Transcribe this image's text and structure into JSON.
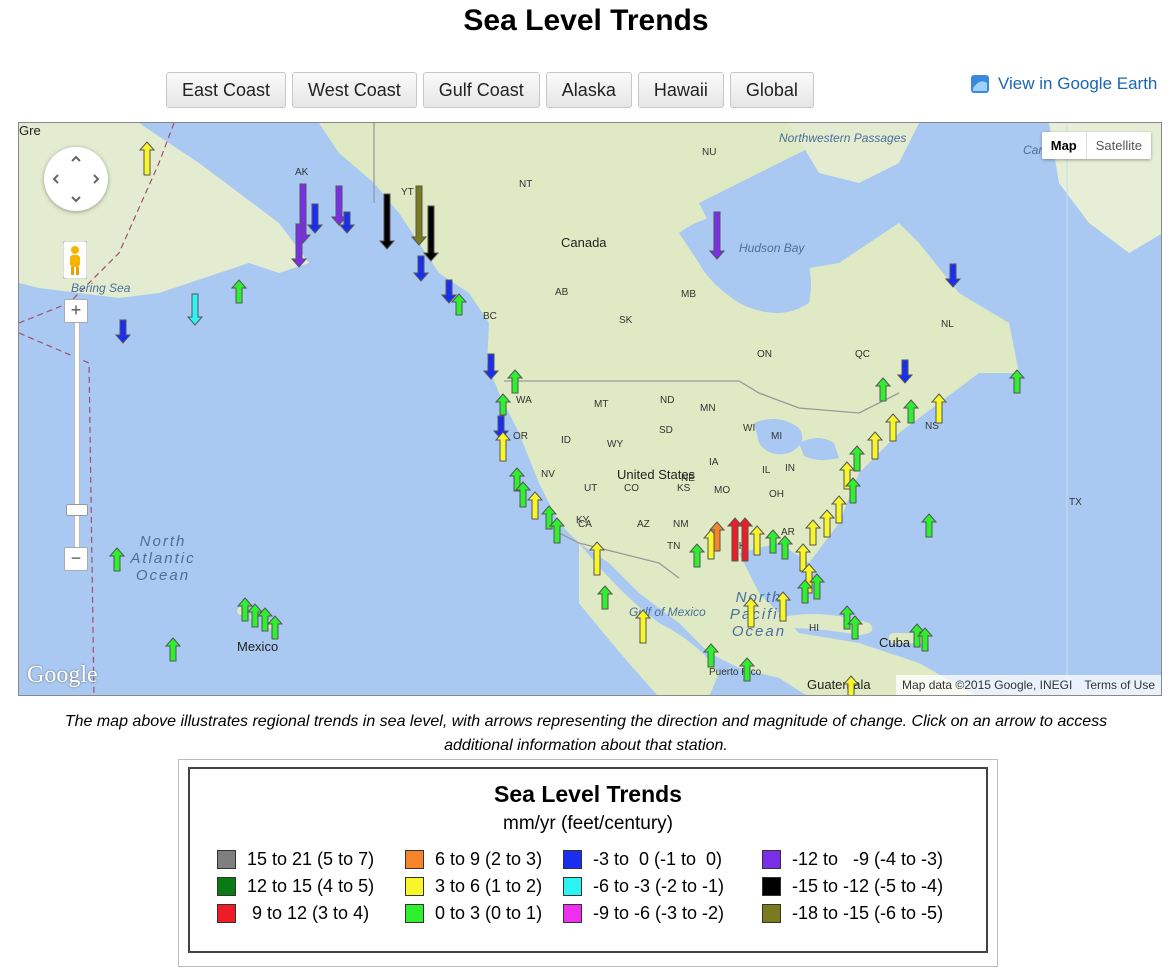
{
  "title": "Sea Level Trends",
  "regions": [
    "East Coast",
    "West Coast",
    "Gulf Coast",
    "Alaska",
    "Hawaii",
    "Global"
  ],
  "google_earth_link": "View in Google Earth",
  "map": {
    "type_buttons": [
      "Map",
      "Satellite"
    ],
    "active_type": "Map",
    "zoom_in": "+",
    "zoom_out": "−",
    "attribution": "Map data ©2015 Google, INEGI",
    "terms": "Terms of Use",
    "logo": "Google",
    "labels": [
      {
        "text": "Northwestern Passages",
        "kind": "water"
      },
      {
        "text": "NU",
        "kind": "region"
      },
      {
        "text": "NT",
        "kind": "region"
      },
      {
        "text": "Canada",
        "kind": "country"
      },
      {
        "text": "Hudson Bay",
        "kind": "water"
      },
      {
        "text": "AK",
        "kind": "region"
      },
      {
        "text": "YT",
        "kind": "region"
      },
      {
        "text": "Bering Sea",
        "kind": "water"
      },
      {
        "text": "AB",
        "kind": "region"
      },
      {
        "text": "MB",
        "kind": "region"
      },
      {
        "text": "BC",
        "kind": "region"
      },
      {
        "text": "SK",
        "kind": "region"
      },
      {
        "text": "NL",
        "kind": "region"
      },
      {
        "text": "ON",
        "kind": "region"
      },
      {
        "text": "QC",
        "kind": "region"
      },
      {
        "text": "WA",
        "kind": "region"
      },
      {
        "text": "MT",
        "kind": "region"
      },
      {
        "text": "ND",
        "kind": "region"
      },
      {
        "text": "MN",
        "kind": "region"
      },
      {
        "text": "OR",
        "kind": "region"
      },
      {
        "text": "ID",
        "kind": "region"
      },
      {
        "text": "WY",
        "kind": "region"
      },
      {
        "text": "SD",
        "kind": "region"
      },
      {
        "text": "WI",
        "kind": "region"
      },
      {
        "text": "MI",
        "kind": "region"
      },
      {
        "text": "NS",
        "kind": "region"
      },
      {
        "text": "NV",
        "kind": "region"
      },
      {
        "text": "NE",
        "kind": "region"
      },
      {
        "text": "IA",
        "kind": "region"
      },
      {
        "text": "United States",
        "kind": "country"
      },
      {
        "text": "UT",
        "kind": "region"
      },
      {
        "text": "CO",
        "kind": "region"
      },
      {
        "text": "KS",
        "kind": "region"
      },
      {
        "text": "MO",
        "kind": "region"
      },
      {
        "text": "IL",
        "kind": "region"
      },
      {
        "text": "IN",
        "kind": "region"
      },
      {
        "text": "OH",
        "kind": "region"
      },
      {
        "text": "KY",
        "kind": "region"
      },
      {
        "text": "CA",
        "kind": "region"
      },
      {
        "text": "AZ",
        "kind": "region"
      },
      {
        "text": "NM",
        "kind": "region"
      },
      {
        "text": "OK",
        "kind": "region"
      },
      {
        "text": "AR",
        "kind": "region"
      },
      {
        "text": "TN",
        "kind": "region"
      },
      {
        "text": "TX",
        "kind": "region"
      },
      {
        "text": "North Atlantic Ocean",
        "kind": "water"
      },
      {
        "text": "North Pacific Ocean",
        "kind": "water"
      },
      {
        "text": "Gulf of Mexico",
        "kind": "water"
      },
      {
        "text": "Mexico",
        "kind": "country"
      },
      {
        "text": "HI",
        "kind": "region"
      },
      {
        "text": "Cuba",
        "kind": "country"
      },
      {
        "text": "Puerto Rico",
        "kind": "region"
      },
      {
        "text": "Guatemala",
        "kind": "country"
      },
      {
        "text": "Caribbean Sea",
        "kind": "water"
      },
      {
        "text": "Gre",
        "kind": "country"
      }
    ]
  },
  "caption": "The map above illustrates regional trends in sea level, with arrows representing the direction and magnitude of change. Click on an arrow to access additional information about that station.",
  "legend": {
    "title": "Sea Level Trends",
    "subtitle": "mm/yr (feet/century)",
    "items": [
      {
        "label": "15 to 21 (5 to 7)",
        "color": "#7f7f7f"
      },
      {
        "label": "12 to 15 (4 to 5)",
        "color": "#0a7a12"
      },
      {
        "label": " 9 to 12 (3 to 4)",
        "color": "#ee1c24"
      },
      {
        "label": "6 to 9 (2 to 3)",
        "color": "#f5842b"
      },
      {
        "label": "3 to 6 (1 to 2)",
        "color": "#f8f52a"
      },
      {
        "label": "0 to 3 (0 to 1)",
        "color": "#2ef02e"
      },
      {
        "label": "-3 to  0 (-1 to  0)",
        "color": "#1a2ef2"
      },
      {
        "label": "-6 to -3 (-2 to -1)",
        "color": "#2ef3f3"
      },
      {
        "label": "-9 to -6 (-3 to -2)",
        "color": "#f02ef0"
      },
      {
        "label": "-12 to   -9 (-4 to -3)",
        "color": "#7a2ee8"
      },
      {
        "label": "-15 to -12 (-5 to -4)",
        "color": "#000000"
      },
      {
        "label": "-18 to -15 (-6 to -5)",
        "color": "#7a7a1e"
      }
    ]
  },
  "colors": {
    "water": "#a9c9f2",
    "land": "#dfe9c4",
    "link": "#1a66b3",
    "up_green": "#2ef02e",
    "up_yellow": "#f8f52a",
    "up_red": "#ee1c24",
    "up_orange": "#f5842b",
    "down_blue": "#1a2ef2",
    "down_cyan": "#2ef3f3",
    "down_purple": "#7a2ee8",
    "down_black": "#000000",
    "down_olive": "#7a7a1e"
  }
}
